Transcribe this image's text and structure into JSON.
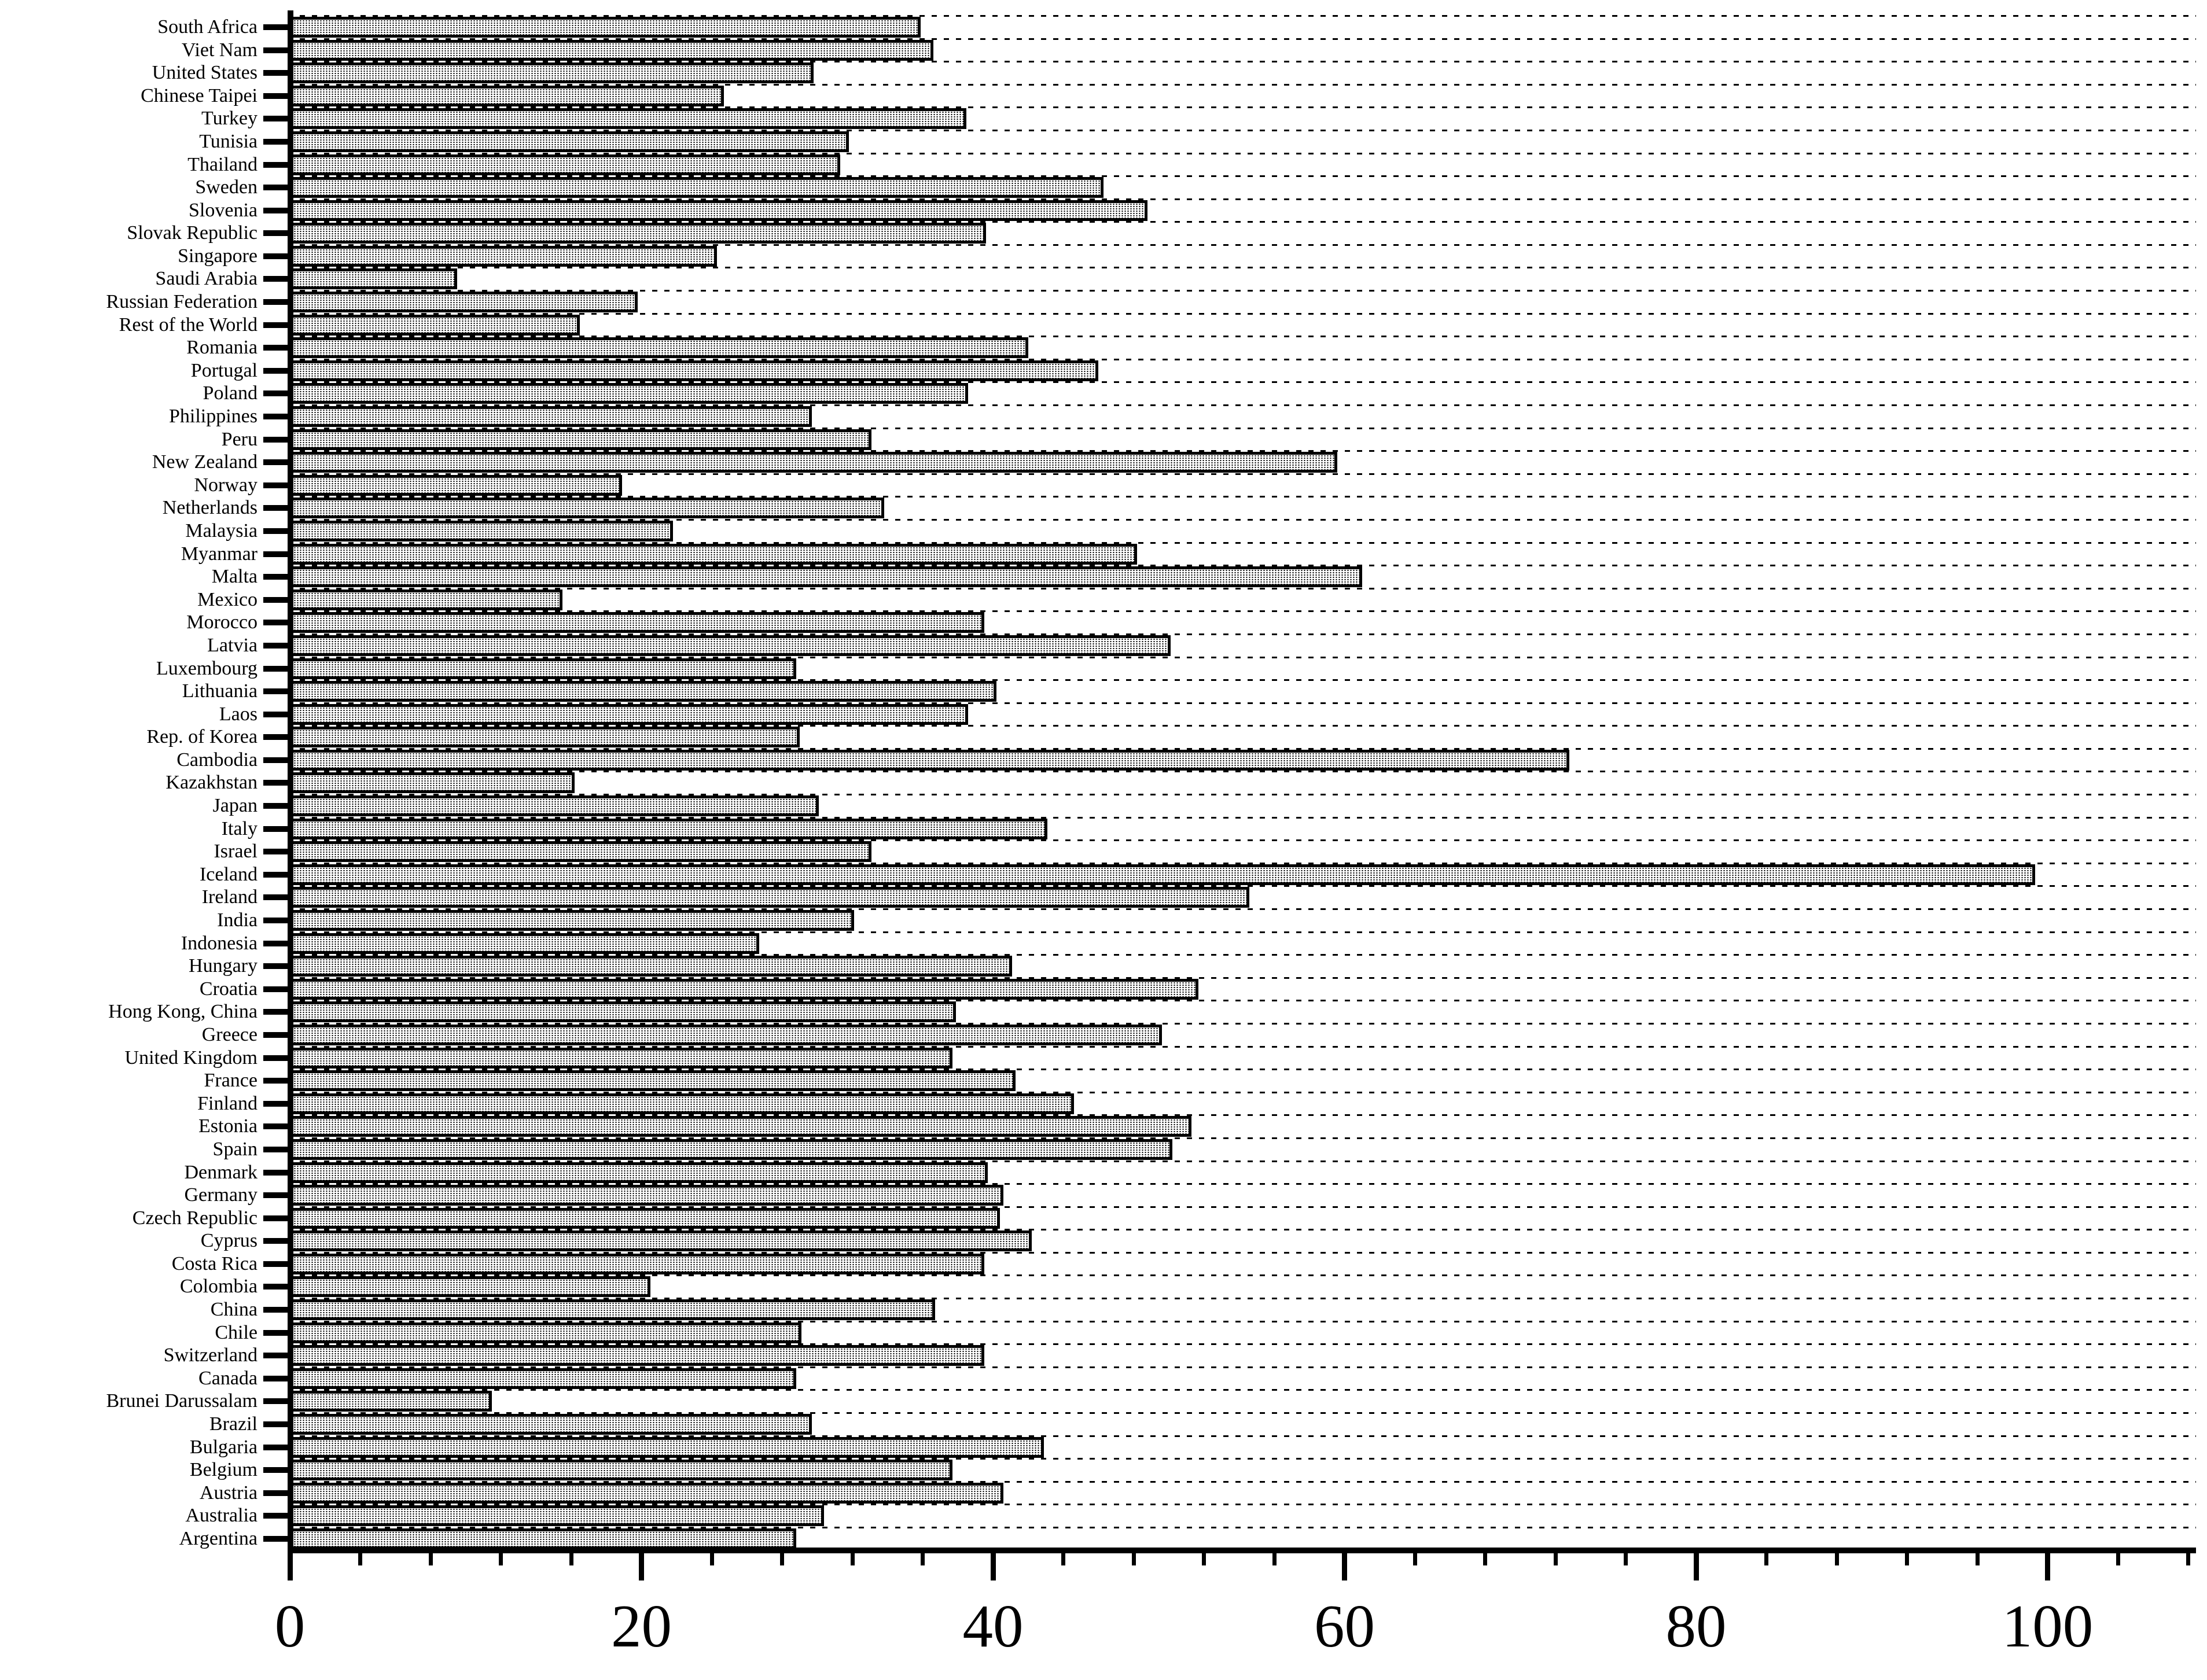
{
  "chart_data": {
    "type": "bar",
    "orientation": "horizontal",
    "title": "",
    "xlabel": "",
    "ylabel": "",
    "xlim": [
      0,
      107.5
    ],
    "x_major_ticks": [
      0,
      20,
      40,
      60,
      80,
      100
    ],
    "x_minor_tick_step": 4,
    "grid": "horizontal-dashed-per-row",
    "legend": "none",
    "bar_fill": "halftone-dot-pattern",
    "bar_border_color": "#000000",
    "categories": [
      "South Africa",
      "Viet Nam",
      "United States",
      "Chinese Taipei",
      "Turkey",
      "Tunisia",
      "Thailand",
      "Sweden",
      "Slovenia",
      "Slovak Republic",
      "Singapore",
      "Saudi Arabia",
      "Russian Federation",
      "Rest of the World",
      "Romania",
      "Portugal",
      "Poland",
      "Philippines",
      "Peru",
      "New Zealand",
      "Norway",
      "Netherlands",
      "Malaysia",
      "Myanmar",
      "Malta",
      "Mexico",
      "Morocco",
      "Latvia",
      "Luxembourg",
      "Lithuania",
      "Laos",
      "Rep. of Korea",
      "Cambodia",
      "Kazakhstan",
      "Japan",
      "Italy",
      "Israel",
      "Iceland",
      "Ireland",
      "India",
      "Indonesia",
      "Hungary",
      "Croatia",
      "Hong Kong, China",
      "Greece",
      "United Kingdom",
      "France",
      "Finland",
      "Estonia",
      "Spain",
      "Denmark",
      "Germany",
      "Czech Republic",
      "Cyprus",
      "Costa Rica",
      "Colombia",
      "China",
      "Chile",
      "Switzerland",
      "Canada",
      "Brunei Darussalam",
      "Brazil",
      "Bulgaria",
      "Belgium",
      "Austria",
      "Australia",
      "Argentina"
    ],
    "values": [
      35.9,
      36.6,
      29.8,
      24.7,
      38.5,
      31.8,
      31.3,
      46.3,
      48.8,
      39.6,
      24.3,
      9.5,
      19.8,
      16.5,
      42.0,
      46.0,
      38.6,
      29.7,
      33.1,
      59.6,
      18.9,
      33.8,
      21.8,
      48.2,
      61.0,
      15.5,
      39.5,
      50.1,
      28.8,
      40.2,
      38.6,
      29.0,
      72.8,
      16.2,
      30.1,
      43.1,
      33.1,
      99.3,
      54.6,
      32.1,
      26.7,
      41.1,
      51.7,
      37.9,
      49.6,
      37.7,
      41.3,
      44.6,
      51.3,
      50.2,
      39.7,
      40.6,
      40.4,
      42.2,
      39.5,
      20.5,
      36.7,
      29.1,
      39.5,
      28.8,
      11.5,
      29.7,
      42.9,
      37.7,
      40.6,
      30.4,
      28.8
    ]
  },
  "colors": {
    "ink": "#000000",
    "background": "#ffffff"
  }
}
